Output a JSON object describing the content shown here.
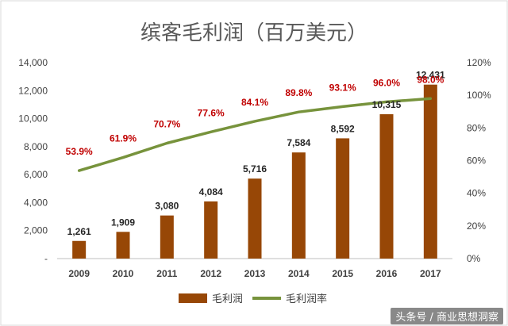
{
  "chart_data": {
    "type": "bar",
    "title": "缤客毛利润（百万美元）",
    "categories": [
      "2009",
      "2010",
      "2011",
      "2012",
      "2013",
      "2014",
      "2015",
      "2016",
      "2017"
    ],
    "series": [
      {
        "name": "毛利润",
        "type": "bar",
        "axis": "left",
        "color": "#974706",
        "values": [
          1261,
          1909,
          3080,
          4084,
          5716,
          7584,
          8592,
          10315,
          12431
        ],
        "labels": [
          "1,261",
          "1,909",
          "3,080",
          "4,084",
          "5,716",
          "7,584",
          "8,592",
          "10,315",
          "12,431"
        ]
      },
      {
        "name": "毛利润率",
        "type": "line",
        "axis": "right",
        "color": "#77933C",
        "values": [
          53.9,
          61.9,
          70.7,
          77.6,
          84.1,
          89.8,
          93.1,
          96.0,
          98.0
        ],
        "labels": [
          "53.9%",
          "61.9%",
          "70.7%",
          "77.6%",
          "84.1%",
          "89.8%",
          "93.1%",
          "96.0%",
          "98.0%"
        ],
        "label_color": "#C00000"
      }
    ],
    "y_left": {
      "ylim": [
        0,
        14000
      ],
      "ticks": [
        "-",
        "2,000",
        "4,000",
        "6,000",
        "8,000",
        "10,000",
        "12,000",
        "14,000"
      ]
    },
    "y_right": {
      "ylim": [
        0,
        120
      ],
      "ticks": [
        "0%",
        "20%",
        "40%",
        "60%",
        "80%",
        "100%",
        "120%"
      ]
    },
    "grid": false,
    "legend": "bottom",
    "watermark": "头条号 / 商业思想洞察"
  }
}
